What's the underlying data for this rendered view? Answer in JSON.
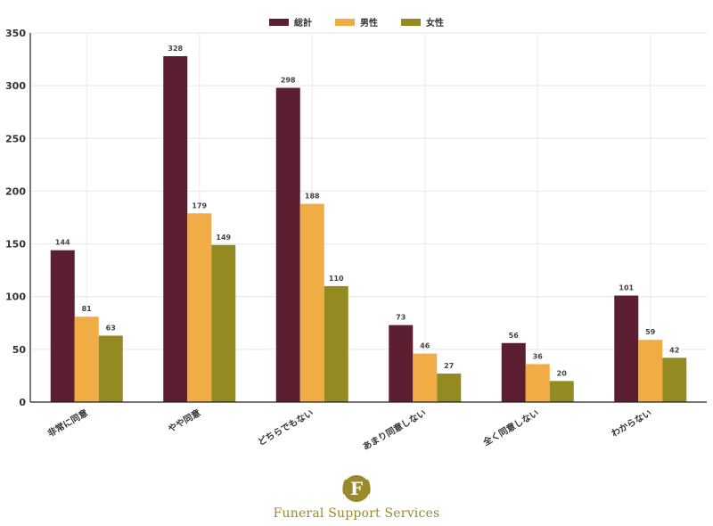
{
  "chart_data": {
    "type": "bar",
    "categories": [
      "非常に同意",
      "やや同意",
      "どちらでもない",
      "あまり同意しない",
      "全く同意しない",
      "わからない"
    ],
    "series": [
      {
        "name": "総計",
        "color": "#5b1f31",
        "values": [
          144,
          328,
          298,
          73,
          56,
          101
        ]
      },
      {
        "name": "男性",
        "color": "#f2ac45",
        "values": [
          81,
          179,
          188,
          46,
          36,
          59
        ]
      },
      {
        "name": "女性",
        "color": "#938a22",
        "values": [
          63,
          149,
          110,
          27,
          20,
          42
        ]
      }
    ],
    "ylim": [
      0,
      350
    ],
    "yticks": [
      0,
      50,
      100,
      150,
      200,
      250,
      300,
      350
    ],
    "grid": true,
    "legend_position": "top-center",
    "data_labels": true,
    "title": "",
    "xlabel": "",
    "ylabel": ""
  },
  "branding": {
    "logo_letter": "F",
    "logo_text": "Funeral Support Services",
    "logo_color": "#9a8a2a"
  }
}
